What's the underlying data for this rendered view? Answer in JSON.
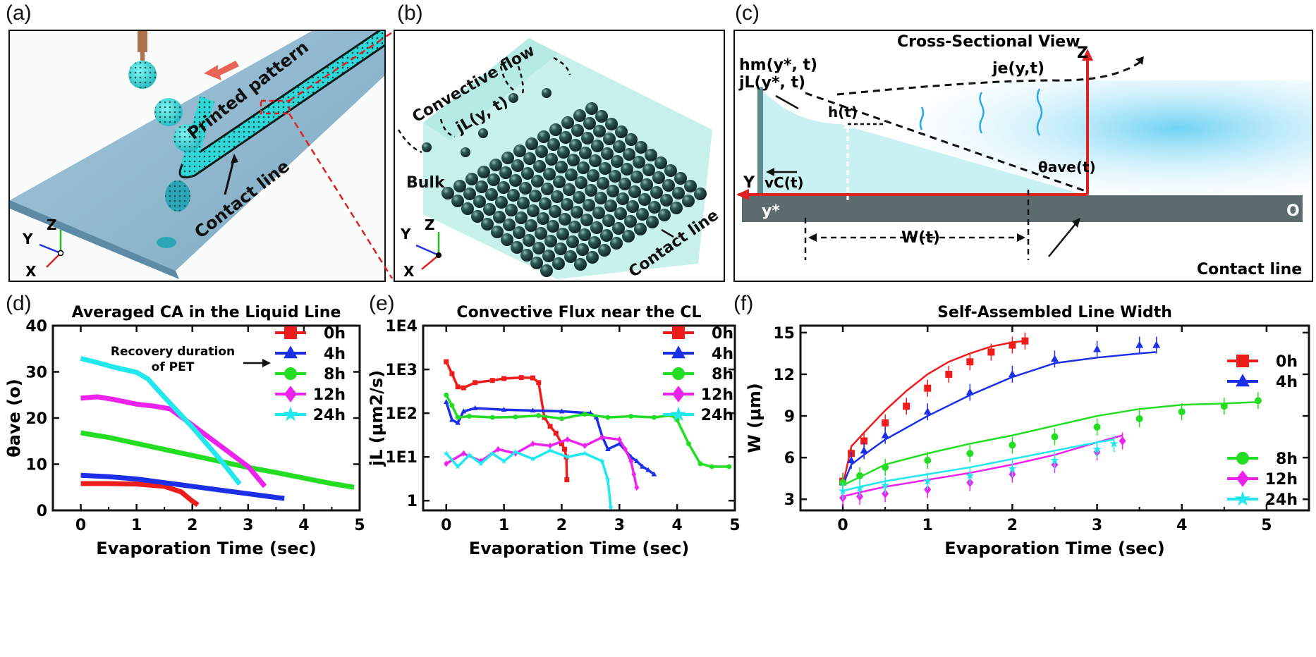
{
  "colors": {
    "c0h": "#ee1c1c",
    "c4h": "#1c2fe8",
    "c8h": "#22dd22",
    "c12h": "#ee22ee",
    "c24h": "#22e8ee",
    "axis": "#111111",
    "bed": "#8fb9d0",
    "liquid": "#33e0e0",
    "sphere": "#1f4a48",
    "arrow_red": "#e02020",
    "substrate": "#5c6b6e"
  },
  "panel_labels": {
    "a": "(a)",
    "b": "(b)",
    "c": "(c)",
    "d": "(d)",
    "e": "(e)",
    "f": "(f)"
  },
  "panel_a": {
    "printed_pattern": "Printed pattern",
    "contact_line": "Contact line",
    "axes": {
      "z": "Z",
      "y": "Y",
      "x": "X"
    }
  },
  "panel_b": {
    "convective_flow": "Convective flow",
    "jl": "jL(y, t)",
    "bulk": "Bulk",
    "contact_line": "Contact line",
    "axes": {
      "z": "Z",
      "y": "Y",
      "x": "X"
    }
  },
  "panel_c": {
    "title": "Cross-Sectional View",
    "hm": "hm(y*, t)",
    "jl": "jL(y*, t)",
    "je": "je(y,t)",
    "ht": "h(t)",
    "theta": "θave(t)",
    "vc": "vC(t)",
    "wt": "W(t)",
    "y_axis": "Y",
    "z_axis": "Z",
    "ystar": "y*",
    "origin": "O",
    "contact_line": "Contact line"
  },
  "chart_data": [
    {
      "type": "line",
      "title": "Averaged CA in the Liquid Line",
      "xlabel": "Evaporation Time (sec)",
      "ylabel": "θave (o)",
      "xlim": [
        -0.5,
        5.0
      ],
      "ylim": [
        0,
        40
      ],
      "xticks": [
        0,
        1,
        2,
        3,
        4,
        5
      ],
      "yticks": [
        0,
        10,
        20,
        30,
        40
      ],
      "annotation": [
        "Recovery duration",
        "of PET"
      ],
      "series": [
        {
          "name": "0h",
          "key": "c0h",
          "marker": "square",
          "x": [
            0,
            0.5,
            1.0,
            1.5,
            1.8,
            2.0,
            2.1
          ],
          "y": [
            5.8,
            5.8,
            5.7,
            5.2,
            4.0,
            2.0,
            1.2
          ]
        },
        {
          "name": "4h",
          "key": "c4h",
          "marker": "triangle",
          "x": [
            0,
            0.5,
            1.0,
            1.5,
            2.0,
            2.5,
            3.0,
            3.5,
            3.65
          ],
          "y": [
            7.6,
            7.3,
            6.8,
            6.0,
            5.2,
            4.4,
            3.6,
            2.8,
            2.6
          ]
        },
        {
          "name": "8h",
          "key": "c8h",
          "marker": "circle",
          "x": [
            0,
            0.5,
            1.0,
            1.5,
            2.0,
            2.5,
            3.0,
            3.5,
            4.0,
            4.5,
            4.9
          ],
          "y": [
            16.8,
            15.8,
            14.5,
            13.2,
            11.9,
            10.6,
            9.3,
            8.2,
            7.0,
            5.8,
            5.0
          ]
        },
        {
          "name": "12h",
          "key": "c12h",
          "marker": "diamond",
          "x": [
            0,
            0.3,
            0.6,
            1.0,
            1.3,
            1.6,
            2.0,
            2.5,
            3.0,
            3.3
          ],
          "y": [
            24.3,
            24.6,
            24.0,
            23.0,
            22.6,
            22.0,
            18.5,
            14.0,
            9.5,
            5.2
          ]
        },
        {
          "name": "24h",
          "key": "c24h",
          "marker": "star",
          "x": [
            0,
            0.3,
            0.6,
            1.0,
            1.2,
            1.5,
            2.0,
            2.5,
            2.85
          ],
          "y": [
            32.9,
            32.0,
            31.0,
            29.9,
            28.5,
            24.5,
            18.0,
            11.0,
            5.7
          ]
        }
      ]
    },
    {
      "type": "line",
      "title": "Convective Flux near the CL",
      "xlabel": "Evaporation Time (sec)",
      "ylabel": "jL (μm2/s)",
      "yscale": "log",
      "xlim": [
        -0.4,
        5.0
      ],
      "ylim": [
        0.6,
        10000
      ],
      "xticks": [
        0,
        1,
        2,
        3,
        4,
        5
      ],
      "yticks": [
        1,
        10,
        100,
        1000,
        10000
      ],
      "yticklabels": [
        "1",
        "1E1",
        "1E2",
        "1E3",
        "1E4"
      ],
      "series": [
        {
          "name": "0h",
          "key": "c0h",
          "marker": "square",
          "x": [
            0,
            0.1,
            0.2,
            0.3,
            0.5,
            0.8,
            1.0,
            1.3,
            1.5,
            1.6,
            1.7,
            1.8,
            1.9,
            2.0,
            2.05,
            2.08,
            2.09
          ],
          "y": [
            1500,
            800,
            400,
            380,
            500,
            560,
            620,
            650,
            640,
            500,
            80,
            50,
            35,
            20,
            15,
            10,
            3
          ]
        },
        {
          "name": "4h",
          "key": "c4h",
          "marker": "triangle",
          "x": [
            0,
            0.1,
            0.2,
            0.3,
            0.5,
            1.0,
            1.5,
            2.0,
            2.5,
            2.6,
            2.7,
            2.8,
            3.0,
            3.2,
            3.3,
            3.4,
            3.5,
            3.6
          ],
          "y": [
            180,
            70,
            60,
            110,
            130,
            120,
            115,
            110,
            100,
            80,
            30,
            15,
            20,
            10,
            8,
            6,
            5,
            4
          ]
        },
        {
          "name": "8h",
          "key": "c8h",
          "marker": "circle",
          "x": [
            0,
            0.1,
            0.2,
            0.4,
            0.8,
            1.2,
            1.6,
            2.0,
            2.4,
            2.8,
            3.2,
            3.6,
            3.9,
            4.0,
            4.2,
            4.4,
            4.6,
            4.9
          ],
          "y": [
            260,
            150,
            80,
            85,
            80,
            82,
            88,
            75,
            95,
            80,
            85,
            80,
            90,
            70,
            20,
            7,
            6,
            6
          ]
        },
        {
          "name": "12h",
          "key": "c12h",
          "marker": "diamond",
          "x": [
            0,
            0.3,
            0.6,
            0.9,
            1.2,
            1.5,
            1.8,
            2.1,
            2.4,
            2.7,
            3.0,
            3.1,
            3.2,
            3.25,
            3.3
          ],
          "y": [
            7,
            12,
            8,
            15,
            12,
            20,
            18,
            25,
            18,
            28,
            25,
            15,
            8,
            4,
            2
          ]
        },
        {
          "name": "24h",
          "key": "c24h",
          "marker": "star",
          "x": [
            0,
            0.2,
            0.4,
            0.6,
            0.8,
            1.0,
            1.2,
            1.5,
            1.8,
            2.1,
            2.4,
            2.7,
            2.8,
            2.85
          ],
          "y": [
            12,
            6,
            11,
            7,
            12,
            8,
            13,
            9,
            14,
            10,
            12,
            8,
            3,
            0.7
          ]
        }
      ]
    },
    {
      "type": "line",
      "title": "Self-Assembled Line Width",
      "xlabel": "Evaporation Time (sec)",
      "ylabel": "W (μm)",
      "xlim": [
        -0.5,
        5.5
      ],
      "ylim": [
        2.2,
        15.5
      ],
      "xticks": [
        0,
        1,
        2,
        3,
        4,
        5
      ],
      "yticks": [
        3,
        6,
        9,
        12,
        15
      ],
      "series": [
        {
          "name": "0h",
          "key": "c0h",
          "marker": "square",
          "x": [
            0,
            0.1,
            0.25,
            0.5,
            0.75,
            1.0,
            1.25,
            1.5,
            1.75,
            2.0,
            2.15
          ],
          "y": [
            4.3,
            6.3,
            7.2,
            8.5,
            9.7,
            11.0,
            12.0,
            12.9,
            13.6,
            14.1,
            14.4
          ],
          "fit": [
            4.0,
            6.8,
            7.8,
            9.4,
            10.8,
            12.0,
            12.9,
            13.5,
            14.0,
            14.3,
            14.4
          ]
        },
        {
          "name": "4h",
          "key": "c4h",
          "marker": "triangle",
          "x": [
            0,
            0.1,
            0.25,
            0.5,
            1.0,
            1.5,
            2.0,
            2.5,
            3.0,
            3.5,
            3.7
          ],
          "y": [
            4.2,
            5.8,
            6.5,
            7.6,
            9.3,
            10.7,
            12.0,
            13.1,
            13.8,
            14.1,
            14.1
          ],
          "fit": [
            4.0,
            5.5,
            6.2,
            7.3,
            9.0,
            10.5,
            11.8,
            12.8,
            13.2,
            13.5,
            13.6
          ]
        },
        {
          "name": "8h",
          "key": "c8h",
          "marker": "circle",
          "x": [
            0,
            0.2,
            0.5,
            1.0,
            1.5,
            2.0,
            2.5,
            3.0,
            3.5,
            4.0,
            4.5,
            4.9
          ],
          "y": [
            4.2,
            4.7,
            5.3,
            5.8,
            6.3,
            6.9,
            7.5,
            8.2,
            8.8,
            9.3,
            9.7,
            10.1
          ],
          "fit": [
            4.0,
            4.6,
            5.5,
            6.3,
            7.0,
            7.6,
            8.3,
            9.0,
            9.5,
            9.8,
            9.9,
            10.0
          ]
        },
        {
          "name": "12h",
          "key": "c12h",
          "marker": "diamond",
          "x": [
            0,
            0.2,
            0.5,
            1.0,
            1.5,
            2.0,
            2.5,
            3.0,
            3.3
          ],
          "y": [
            3.1,
            3.2,
            3.4,
            3.7,
            4.2,
            4.8,
            5.5,
            6.4,
            7.2
          ],
          "fit": [
            3.2,
            3.5,
            3.9,
            4.4,
            4.9,
            5.5,
            6.2,
            7.1,
            7.6
          ]
        },
        {
          "name": "24h",
          "key": "c24h",
          "marker": "star",
          "x": [
            0,
            0.2,
            0.5,
            1.0,
            1.5,
            2.0,
            2.5,
            3.0,
            3.2
          ],
          "y": [
            3.6,
            3.8,
            4.0,
            4.3,
            4.7,
            5.2,
            5.8,
            6.6,
            7.0
          ],
          "fit": [
            3.6,
            3.9,
            4.3,
            4.8,
            5.3,
            5.9,
            6.5,
            7.1,
            7.3
          ]
        }
      ]
    }
  ]
}
